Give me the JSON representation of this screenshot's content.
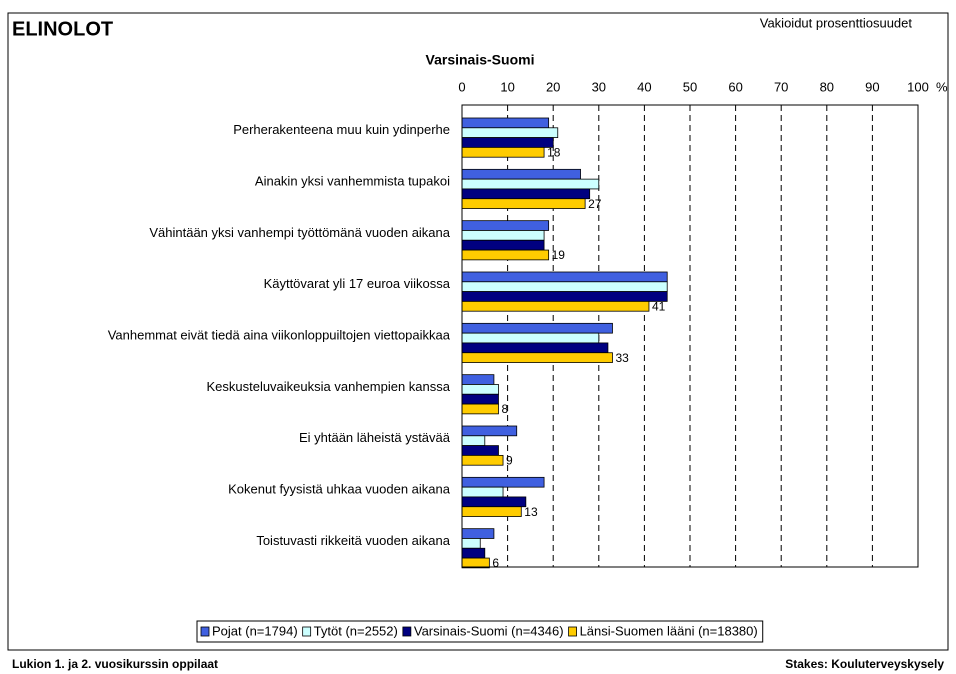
{
  "chart_data": {
    "type": "hbar",
    "corner_title": "ELINOLOT",
    "note": "Vakioidut prosenttiosuudet",
    "title": "Varsinais-Suomi",
    "x_unit": "%",
    "footnote": "Lukion 1. ja 2. vuosikurssin oppilaat",
    "source": "Stakes: Kouluterveyskysely",
    "categories": [
      "Perherakenteena muu kuin ydinperhe",
      "Ainakin yksi vanhemmista tupakoi",
      "Vähintään yksi vanhempi työttömänä vuoden aikana",
      "Käyttövarat yli 17 euroa viikossa",
      "Vanhemmat eivät tiedä aina viikonloppuiltojen viettopaikkaa",
      "Keskusteluvaikeuksia vanhempien kanssa",
      "Ei yhtään läheistä ystävää",
      "Kokenut fyysistä uhkaa vuoden aikana",
      "Toistuvasti rikkeitä vuoden aikana"
    ],
    "series": [
      {
        "name": "Pojat (n=1794)",
        "color": "#4060e0",
        "values": [
          19,
          26,
          19,
          45,
          33,
          7,
          12,
          18,
          7
        ]
      },
      {
        "name": "Tytöt (n=2552)",
        "color": "#ccffff",
        "values": [
          21,
          30,
          18,
          45,
          30,
          8,
          5,
          9,
          4
        ]
      },
      {
        "name": "Varsinais-Suomi (n=4346)",
        "color": "#000080",
        "values": [
          20,
          28,
          18,
          45,
          32,
          8,
          8,
          14,
          5
        ]
      },
      {
        "name": "Länsi-Suomen lääni (n=18380)",
        "color": "#ffcc00",
        "values": [
          18,
          27,
          19,
          41,
          33,
          8,
          9,
          13,
          6
        ],
        "data_labels": true
      }
    ],
    "xlim": [
      0,
      100
    ],
    "xticks": [
      0,
      10,
      20,
      30,
      40,
      50,
      60,
      70,
      80,
      90,
      100
    ],
    "grid": true
  }
}
